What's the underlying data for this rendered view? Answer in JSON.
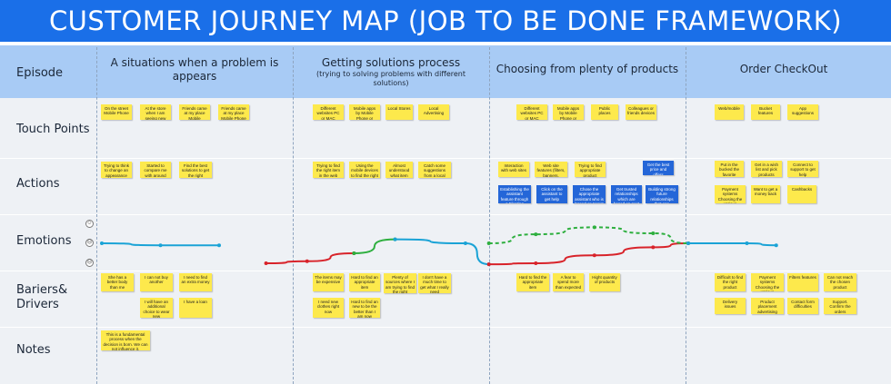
{
  "title": "CUSTOMER JOURNEY MAP (JOB TO BE DONE FRAMEWORK)",
  "rows": {
    "episode": "Episode",
    "touch_points": "Touch Points",
    "actions": "Actions",
    "emotions": "Emotions",
    "barriers": "Bariers& Drivers",
    "notes": "Notes"
  },
  "phases": [
    {
      "title": "A situations when a problem is appears",
      "subtitle": ""
    },
    {
      "title": "Getting solutions process",
      "subtitle": "(trying to solving problems with different solutions)"
    },
    {
      "title": "Choosing from plenty of products",
      "subtitle": ""
    },
    {
      "title": "Order CheckOut",
      "subtitle": ""
    }
  ],
  "emotion_icons": [
    "☺",
    "☹",
    "☹"
  ],
  "notes": {
    "touch_points": [
      "On the street Mobile Phone",
      "At the store when I am seeing new models of clothes Mobile Phone",
      "Friends came at my place Mobile Phone/WEB",
      "Friends came at my place Mobile Phone",
      "Different websites PC or MAC",
      "Mobile apps by Mobile Phone or tablet",
      "Local Stores",
      "Local Advertising",
      "Different websites PC or MAC",
      "Mobile apps by Mobile Phone or tablet",
      "Public places",
      "Colleagues or friends devices",
      "Web/mobile",
      "Bucket features",
      "App suggestions"
    ],
    "actions": [
      "Trying to think to change an appearance",
      "Started to compare me with around people",
      "Find the best solutions to get the right product",
      "Trying to find the right item in the web apps",
      "Using the mobile devices to find the right product",
      "Almost understood what item she wants",
      "Catch some suggestions from a local sources",
      "Interaction with web sites",
      "Web site features (filters, banners, promo, etc)",
      "Trying to find appropriate product",
      "Get the best price and offers",
      "Establishing the assistant feature through a Floating button",
      "Click on the assistant to get help",
      "Chose the appropriate assistant who is based on target interest",
      "Get trusted relationships which are based on past recognition",
      "Building strong future relationships that can increase the conversion rate",
      "Put in the bucked the favorite products",
      "Get in a wish list and pick products",
      "Connect to support to get help",
      "Payment systems Choosing the various methods",
      "Want to get a money back",
      "Cashbacks"
    ],
    "barriers": [
      "She has a better body than me",
      "I can not buy another",
      "I need to find an extra money",
      "I will have an additional choice to wear new",
      "I have a loan",
      "The items may be expensive",
      "Hard to find an appropriate item",
      "Plenty of sources where I am trying to find the right solutions",
      "I don't have a much time to get what I really need",
      "I need new clothes right now",
      "Hard to find an new to be the better than I am now",
      "Hard to find the appropriate item",
      "A fear to spend more than expected",
      "Hight quantity of products",
      "Difficult to find the right product",
      "Payment systems Choosing the various methods",
      "Filters features",
      "Can not reach the chosen product",
      "Delivery issues",
      "Product placement advertising",
      "Contact form difficulties",
      "Support. Confirm the orders"
    ],
    "notes": [
      "This is a fundamental process when the decision is born. We can not influence it."
    ]
  },
  "emotion_data": {
    "type": "line",
    "level_meaning": "0 = neutral, positive = happier, negative = unhappier",
    "series": [
      {
        "name": "",
        "color": "#1aa3d6",
        "style": "solid",
        "values": [
          [
            0,
            0
          ],
          [
            1,
            -0.1
          ],
          [
            2,
            -0.1
          ]
        ]
      },
      {
        "name": "",
        "color": "#d8232a",
        "style": "solid",
        "values": [
          [
            2.8,
            -1
          ],
          [
            3.5,
            -0.9
          ],
          [
            4.3,
            -0.5
          ]
        ]
      },
      {
        "name": "",
        "color": "#2eaf3f",
        "style": "solid",
        "values": [
          [
            4.3,
            -0.5
          ],
          [
            5,
            0.2
          ]
        ]
      },
      {
        "name": "",
        "color": "#1aa3d6",
        "style": "solid",
        "values": [
          [
            5,
            0.2
          ],
          [
            6.2,
            0
          ],
          [
            6.6,
            -1.05
          ]
        ]
      },
      {
        "name": "",
        "color": "#d8232a",
        "style": "solid",
        "values": [
          [
            6.6,
            -1.05
          ],
          [
            7.4,
            -1
          ],
          [
            8.4,
            -0.6
          ],
          [
            9.4,
            -0.2
          ],
          [
            10,
            0
          ]
        ]
      },
      {
        "name": "",
        "color": "#2eaf3f",
        "style": "dashed",
        "values": [
          [
            6.6,
            0
          ],
          [
            7.4,
            0.45
          ],
          [
            8.4,
            0.8
          ],
          [
            9.4,
            0.5
          ],
          [
            10,
            0
          ]
        ]
      },
      {
        "name": "",
        "color": "#1aa3d6",
        "style": "solid",
        "values": [
          [
            10,
            0
          ],
          [
            11,
            0
          ],
          [
            11.5,
            -0.1
          ]
        ]
      }
    ]
  },
  "colors": {
    "title_bar": "#1a6fe8",
    "episode_band": "#a8cbf5",
    "sticky_yellow": "#fde94c",
    "sticky_blue": "#2466d8"
  }
}
